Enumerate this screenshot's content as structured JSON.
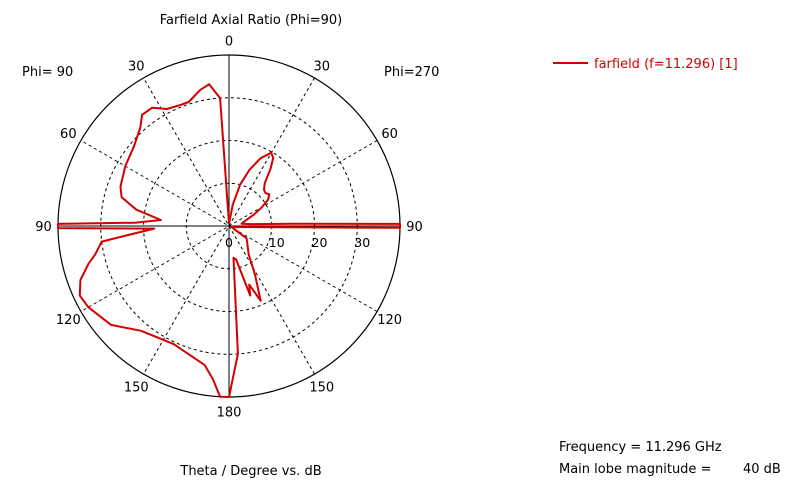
{
  "chart_data": {
    "type": "polar",
    "title": "Farfield  Axial Ratio (Phi=90)",
    "left_label": "Phi= 90",
    "right_label": "Phi=270",
    "xlabel": "Theta / Degree vs. dB",
    "angle_labels": [
      {
        "text": "0",
        "angle": 0
      },
      {
        "text": "30",
        "angle": 30
      },
      {
        "text": "60",
        "angle": 60
      },
      {
        "text": "90",
        "angle": 90
      },
      {
        "text": "120",
        "angle": 120
      },
      {
        "text": "150",
        "angle": 150
      },
      {
        "text": "180",
        "angle": 180
      },
      {
        "text": "150",
        "angle": 210
      },
      {
        "text": "120",
        "angle": 240
      },
      {
        "text": "90",
        "angle": 270
      },
      {
        "text": "60",
        "angle": 300
      },
      {
        "text": "30",
        "angle": 330
      }
    ],
    "radial_range": [
      0,
      40
    ],
    "radial_ticks": [
      0,
      10,
      20,
      30
    ],
    "radial_tick_labels": [
      "0",
      "10",
      "20",
      "30"
    ],
    "grid": true,
    "series": [
      {
        "name": "farfield (f=11.296) [1]",
        "color": "#d40000",
        "points": [
          [
            0,
            0.5
          ],
          [
            5,
            1.0
          ],
          [
            10,
            5.0
          ],
          [
            15,
            10.0
          ],
          [
            20,
            14.0
          ],
          [
            25,
            17.5
          ],
          [
            30,
            19.8
          ],
          [
            33,
            19.0
          ],
          [
            36,
            16.5
          ],
          [
            40,
            13.0
          ],
          [
            44,
            11.8
          ],
          [
            48,
            11.5
          ],
          [
            52,
            12.0
          ],
          [
            56,
            11.0
          ],
          [
            60,
            9.0
          ],
          [
            65,
            6.5
          ],
          [
            70,
            4.5
          ],
          [
            75,
            3.5
          ],
          [
            80,
            3.0
          ],
          [
            85,
            5.0
          ],
          [
            88,
            15.0
          ],
          [
            89.3,
            40.0
          ],
          [
            90.6,
            40.0
          ],
          [
            91.5,
            12.0
          ],
          [
            95,
            3.0
          ],
          [
            100,
            1.5
          ],
          [
            110,
            0.5
          ],
          [
            125,
            5.0
          ],
          [
            130,
            5.5
          ],
          [
            145,
            8.0
          ],
          [
            152,
            13.0
          ],
          [
            157,
            19.0
          ],
          [
            161,
            14.5
          ],
          [
            163,
            17.0
          ],
          [
            168,
            8.0
          ],
          [
            172,
            7.5
          ],
          [
            176,
            30.0
          ],
          [
            180,
            40.0
          ],
          [
            183,
            40.0
          ],
          [
            186,
            36.0
          ],
          [
            190,
            33.0
          ],
          [
            205,
            30.5
          ],
          [
            220,
            32.0
          ],
          [
            230,
            36.0
          ],
          [
            240,
            38.0
          ],
          [
            245,
            38.5
          ],
          [
            250,
            37.0
          ],
          [
            255,
            34.0
          ],
          [
            258,
            32.0
          ],
          [
            263,
            30.0
          ],
          [
            268,
            17.5
          ],
          [
            269.3,
            40.0
          ],
          [
            270.7,
            40.0
          ],
          [
            272,
            22.0
          ],
          [
            275,
            16.0
          ],
          [
            280,
            22.0
          ],
          [
            285,
            26.0
          ],
          [
            290,
            27.0
          ],
          [
            300,
            28.0
          ],
          [
            310,
            29.0
          ],
          [
            318,
            31.0
          ],
          [
            322,
            33.0
          ],
          [
            327,
            33.0
          ],
          [
            332,
            31.0
          ],
          [
            338,
            30.5
          ],
          [
            342,
            30.5
          ],
          [
            348,
            32.5
          ],
          [
            352,
            33.5
          ],
          [
            356,
            30.0
          ],
          [
            360,
            0.5
          ]
        ]
      }
    ],
    "legend_position": "top-right"
  },
  "info": {
    "frequency": "Frequency = 11.296 GHz",
    "main_lobe_label": "Main lobe magnitude =",
    "main_lobe_value": "40 dB"
  }
}
